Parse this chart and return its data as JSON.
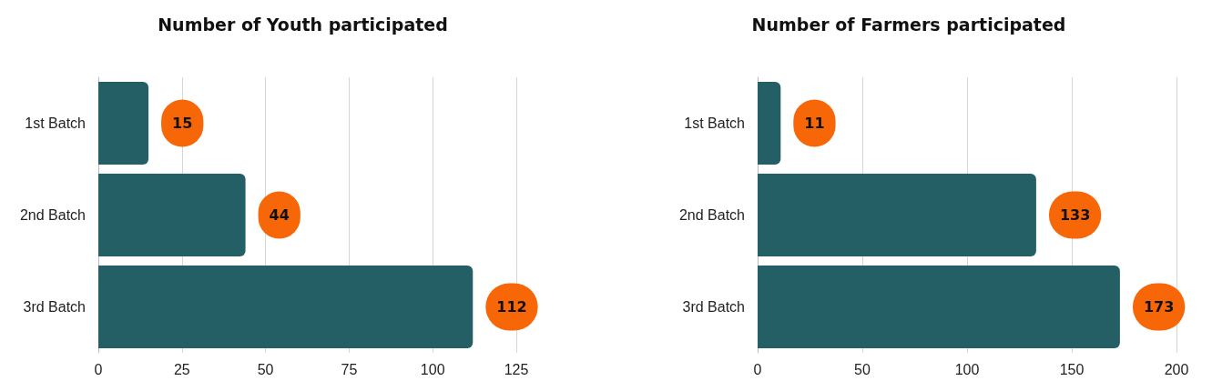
{
  "chart_data": [
    {
      "type": "bar",
      "orientation": "horizontal",
      "title": "Number of Youth participated",
      "categories": [
        "1st Batch",
        "2nd Batch",
        "3rd Batch"
      ],
      "values": [
        15,
        44,
        112
      ],
      "color": "#245f66",
      "xlim": [
        0,
        125
      ],
      "xticks": [
        0,
        25,
        50,
        75,
        100,
        125
      ],
      "grid": "x",
      "data_labels": true
    },
    {
      "type": "bar",
      "orientation": "horizontal",
      "title": "Number of Farmers participated",
      "categories": [
        "1st Batch",
        "2nd Batch",
        "3rd Batch"
      ],
      "values": [
        11,
        133,
        173
      ],
      "color": "#245f66",
      "xlim": [
        0,
        200
      ],
      "xticks": [
        0,
        50,
        100,
        150,
        200
      ],
      "grid": "x",
      "data_labels": true
    }
  ]
}
